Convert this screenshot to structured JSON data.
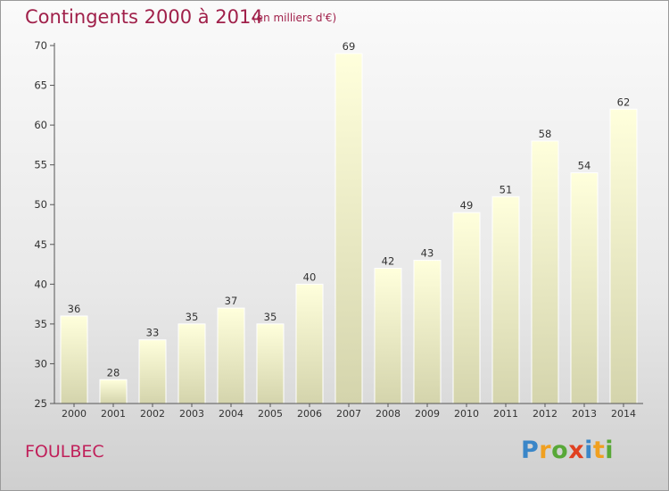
{
  "header": {
    "title": "Contingents 2000 à 2014",
    "subtitle": "(en milliers d'€)"
  },
  "footer": {
    "commune": "FOULBEC",
    "logo_letters": [
      {
        "ch": "P",
        "color": "#3a86c8"
      },
      {
        "ch": "r",
        "color": "#f0a020"
      },
      {
        "ch": "o",
        "color": "#58a838"
      },
      {
        "ch": "x",
        "color": "#e04020"
      },
      {
        "ch": "i",
        "color": "#3a86c8"
      },
      {
        "ch": "t",
        "color": "#f0a020"
      },
      {
        "ch": "i",
        "color": "#58a838"
      }
    ]
  },
  "colors": {
    "title": "#a0204a",
    "bar_top": "#ffffdc",
    "bar_bottom": "#d4d4ac",
    "axis": "#555555",
    "label": "#333333"
  },
  "chart_data": {
    "type": "bar",
    "title": "Contingents 2000 à 2014",
    "subtitle": "(en milliers d'€)",
    "categories": [
      "2000",
      "2001",
      "2002",
      "2003",
      "2004",
      "2005",
      "2006",
      "2007",
      "2008",
      "2009",
      "2010",
      "2011",
      "2012",
      "2013",
      "2014"
    ],
    "values": [
      36,
      28,
      33,
      35,
      37,
      35,
      40,
      69,
      42,
      43,
      49,
      51,
      58,
      54,
      62
    ],
    "ylim": [
      25,
      70
    ],
    "yticks": [
      25,
      30,
      35,
      40,
      45,
      50,
      55,
      60,
      65,
      70
    ],
    "xlabel": "",
    "ylabel": "",
    "grid": false,
    "data_labels": true
  }
}
